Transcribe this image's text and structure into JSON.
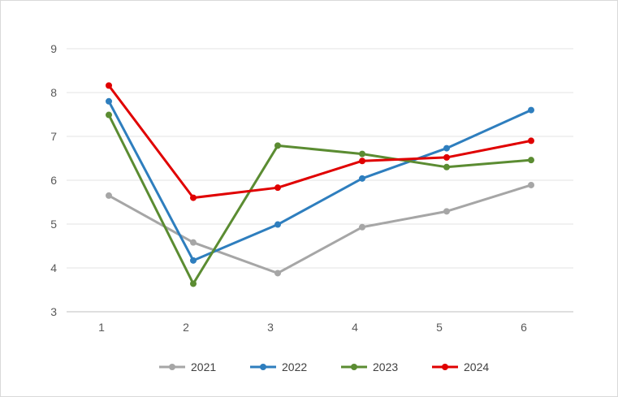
{
  "chart_data": {
    "type": "line",
    "title": "",
    "xlabel": "",
    "ylabel": "",
    "categories": [
      "1",
      "2",
      "3",
      "4",
      "5",
      "6"
    ],
    "ylim": [
      3,
      9
    ],
    "yticks": [
      "3",
      "4",
      "5",
      "6",
      "7",
      "8",
      "9"
    ],
    "grid": "horizontal",
    "legend": "bottom",
    "series": [
      {
        "name": "2021",
        "color": "#a6a6a6",
        "values": [
          5.65,
          4.58,
          3.88,
          4.93,
          5.29,
          5.89
        ]
      },
      {
        "name": "2022",
        "color": "#2e7ebe",
        "values": [
          7.8,
          4.17,
          4.99,
          6.04,
          6.73,
          7.6
        ]
      },
      {
        "name": "2023",
        "color": "#5b8c32",
        "values": [
          7.49,
          3.64,
          6.79,
          6.6,
          6.3,
          6.46
        ]
      },
      {
        "name": "2024",
        "color": "#e00000",
        "values": [
          8.16,
          5.6,
          5.83,
          6.44,
          6.52,
          6.9
        ]
      }
    ]
  }
}
